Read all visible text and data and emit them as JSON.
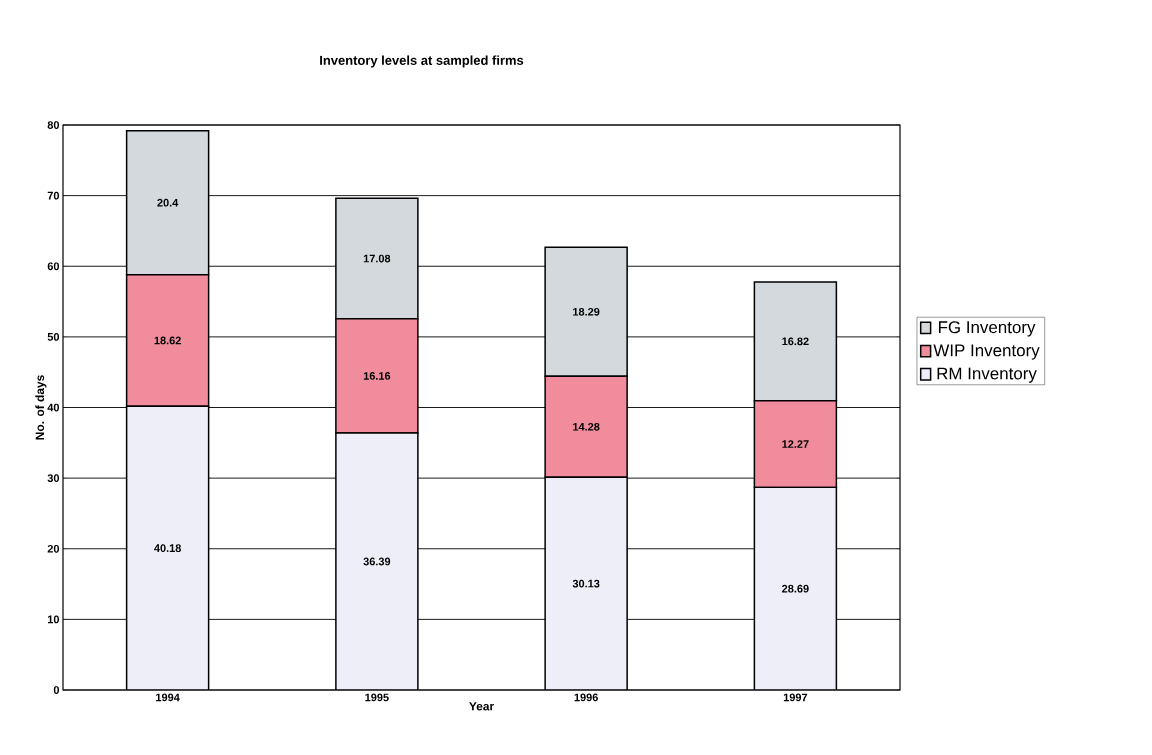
{
  "chart_data": {
    "type": "bar",
    "stacked": true,
    "title": "Inventory levels at sampled firms",
    "xlabel": "Year",
    "ylabel": "No. of days",
    "categories": [
      "1994",
      "1995",
      "1996",
      "1997"
    ],
    "series": [
      {
        "name": "RM Inventory",
        "color": "#eeeef8",
        "values": [
          40.18,
          36.39,
          30.13,
          28.69
        ]
      },
      {
        "name": "WIP Inventory",
        "color": "#f08c9c",
        "values": [
          18.62,
          16.16,
          14.28,
          12.27
        ]
      },
      {
        "name": "FG Inventory",
        "color": "#d3d9dc",
        "values": [
          20.4,
          17.08,
          18.29,
          16.82
        ]
      }
    ],
    "ylim": [
      0,
      80
    ],
    "yticks": [
      0,
      10,
      20,
      30,
      40,
      50,
      60,
      70,
      80
    ],
    "grid": "y",
    "legend": "right",
    "data_labels": true
  }
}
